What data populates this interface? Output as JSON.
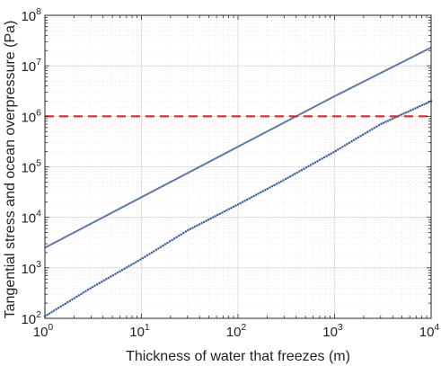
{
  "chart_data": {
    "type": "line",
    "xlabel": "Thickness of water that freezes (m)",
    "ylabel": "Tangential stress and ocean overpressure (Pa)",
    "xscale": "log",
    "yscale": "log",
    "xlim": [
      1,
      10000
    ],
    "ylim": [
      100,
      100000000
    ],
    "grid": true,
    "x_ticks": [
      {
        "base": "10",
        "exp": "0"
      },
      {
        "base": "10",
        "exp": "1"
      },
      {
        "base": "10",
        "exp": "2"
      },
      {
        "base": "10",
        "exp": "3"
      },
      {
        "base": "10",
        "exp": "4"
      }
    ],
    "y_ticks": [
      {
        "base": "10",
        "exp": "2"
      },
      {
        "base": "10",
        "exp": "3"
      },
      {
        "base": "10",
        "exp": "4"
      },
      {
        "base": "10",
        "exp": "5"
      },
      {
        "base": "10",
        "exp": "6"
      },
      {
        "base": "10",
        "exp": "7"
      },
      {
        "base": "10",
        "exp": "8"
      }
    ],
    "series": [
      {
        "style": "solid",
        "color": "#5b7bab",
        "x": [
          1,
          10,
          100,
          1000,
          10000
        ],
        "y": [
          2500,
          25000,
          250000,
          2500000,
          23000000
        ]
      },
      {
        "style": "dotted",
        "color": "#3d63a8",
        "x": [
          1,
          3,
          10,
          30,
          100,
          300,
          1000,
          3000,
          10000
        ],
        "y": [
          110,
          400,
          1500,
          5500,
          18000,
          55000,
          200000,
          700000,
          2000000
        ]
      },
      {
        "style": "dashed",
        "color": "#e8252a",
        "x": [
          1,
          10000
        ],
        "y": [
          1000000,
          1000000
        ]
      }
    ]
  }
}
